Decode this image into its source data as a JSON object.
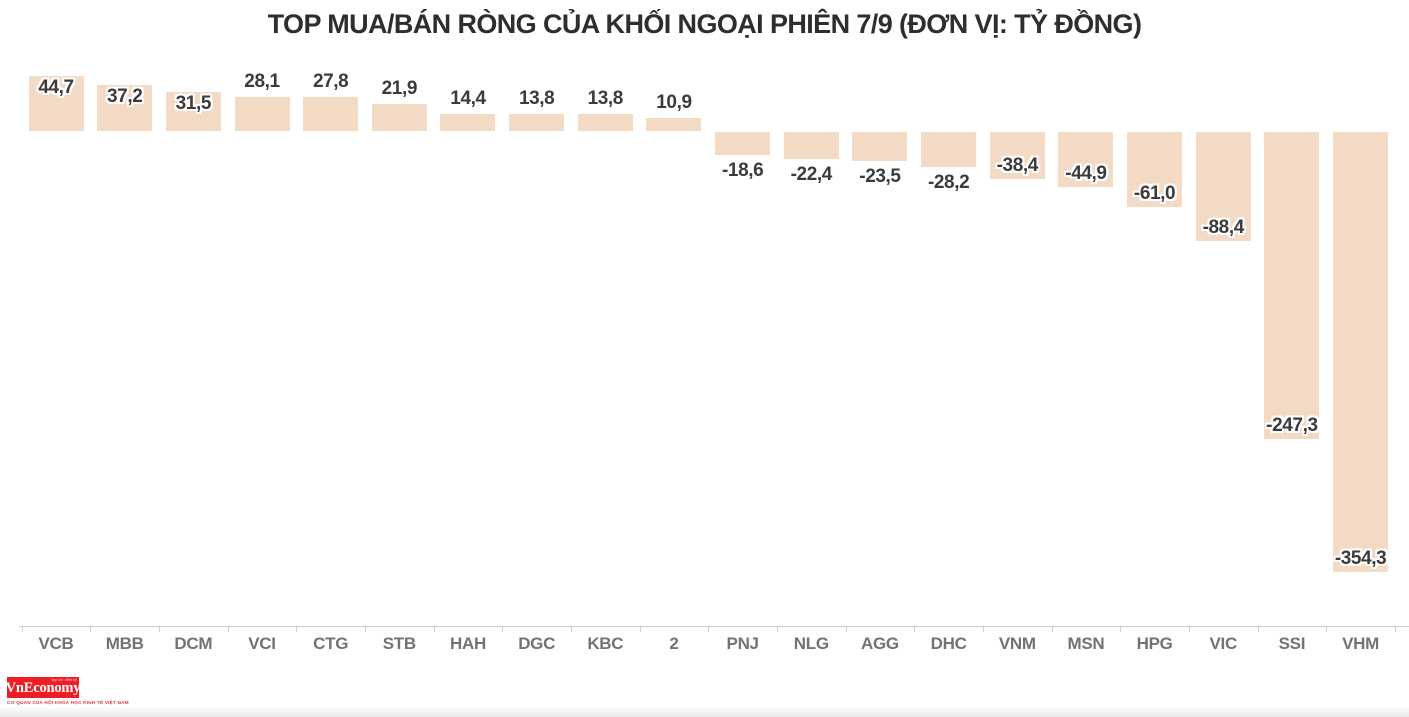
{
  "header": {
    "title": "TOP MUA/BÁN RÒNG CỦA KHỐI NGOẠI PHIÊN 7/9 (ĐƠN VỊ: TỶ ĐỒNG)"
  },
  "chart_data": {
    "type": "bar",
    "title": "TOP MUA/BÁN RÒNG CỦA KHỐI NGOẠI PHIÊN 7/9 (ĐƠN VỊ: TỶ ĐỒNG)",
    "unit": "tỷ đồng",
    "categories": [
      "VCB",
      "MBB",
      "DCM",
      "VCI",
      "CTG",
      "STB",
      "HAH",
      "DGC",
      "KBC",
      "2",
      "PNJ",
      "NLG",
      "AGG",
      "DHC",
      "VNM",
      "MSN",
      "HPG",
      "VIC",
      "SSI",
      "VHM"
    ],
    "values": [
      44.7,
      37.2,
      31.5,
      28.1,
      27.8,
      21.9,
      14.4,
      13.8,
      13.8,
      10.9,
      -18.6,
      -22.4,
      -23.5,
      -28.2,
      -38.4,
      -44.9,
      -61.0,
      -88.4,
      -247.3,
      -354.3
    ],
    "value_labels": [
      "44,7",
      "37,2",
      "31,5",
      "28,1",
      "27,8",
      "21,9",
      "14,4",
      "13,8",
      "13,8",
      "10,9",
      "-18,6",
      "-22,4",
      "-23,5",
      "-28,2",
      "-38,4",
      "-44,9",
      "-61,0",
      "-88,4",
      "-247,3",
      "-354,3"
    ],
    "xlabel": "",
    "ylabel": "",
    "ylim": [
      -380,
      60
    ],
    "grid": false,
    "legend_position": "none",
    "bar_color": "#f3dac4",
    "value_label_color": "#3b3b3b",
    "category_label_color": "#737373",
    "axis_color": "#cccccc"
  },
  "footer": {
    "logo": {
      "wordmark": "VnEconomy",
      "small_top_text": "tạp chí điện tử",
      "tagline": "CƠ QUAN CỦA HỘI KHOA HỌC KINH TẾ VIỆT NAM",
      "background_color": "#ee1c25"
    }
  }
}
